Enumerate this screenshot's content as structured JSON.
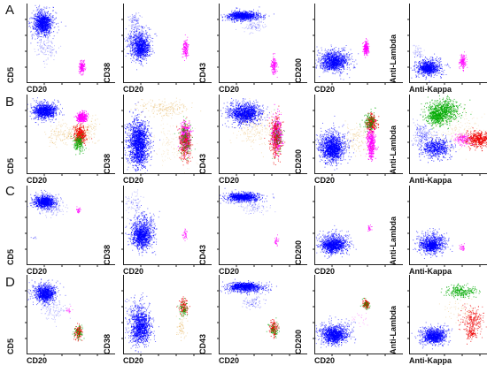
{
  "figure": {
    "rows": [
      {
        "label": "A",
        "panels": [
          {
            "xlabel": "CD20",
            "ylabel": "CD5"
          },
          {
            "xlabel": "CD20",
            "ylabel": "CD38"
          },
          {
            "xlabel": "CD20",
            "ylabel": "CD43"
          },
          {
            "xlabel": "CD20",
            "ylabel": "CD200"
          },
          {
            "xlabel": "Anti-Kappa",
            "ylabel": "Anti-Lambda"
          }
        ]
      },
      {
        "label": "B",
        "panels": [
          {
            "xlabel": "CD20",
            "ylabel": "CD5"
          },
          {
            "xlabel": "CD20",
            "ylabel": "CD38"
          },
          {
            "xlabel": "CD20",
            "ylabel": "CD43"
          },
          {
            "xlabel": "CD20",
            "ylabel": "CD200"
          },
          {
            "xlabel": "Anti-Kappa",
            "ylabel": "Anti-Lambda"
          }
        ]
      },
      {
        "label": "C",
        "panels": [
          {
            "xlabel": "CD20",
            "ylabel": "CD5"
          },
          {
            "xlabel": "CD20",
            "ylabel": "CD38"
          },
          {
            "xlabel": "CD20",
            "ylabel": "CD43"
          },
          {
            "xlabel": "CD20",
            "ylabel": "CD200"
          },
          {
            "xlabel": "Anti-Kappa",
            "ylabel": "Anti-Lambda"
          }
        ]
      },
      {
        "label": "D",
        "panels": [
          {
            "xlabel": "CD20",
            "ylabel": "CD5"
          },
          {
            "xlabel": "CD20",
            "ylabel": "CD38"
          },
          {
            "xlabel": "CD20",
            "ylabel": "CD43"
          },
          {
            "xlabel": "CD20",
            "ylabel": "CD200"
          },
          {
            "xlabel": "Anti-Kappa",
            "ylabel": "Anti-Lambda"
          }
        ]
      }
    ],
    "colors": {
      "blue_population": "#0000ff",
      "magenta_population": "#ff00ff",
      "red_population": "#ee0000",
      "green_population": "#00aa00",
      "orange_population": "#e0a030",
      "axis": "#222222"
    }
  }
}
